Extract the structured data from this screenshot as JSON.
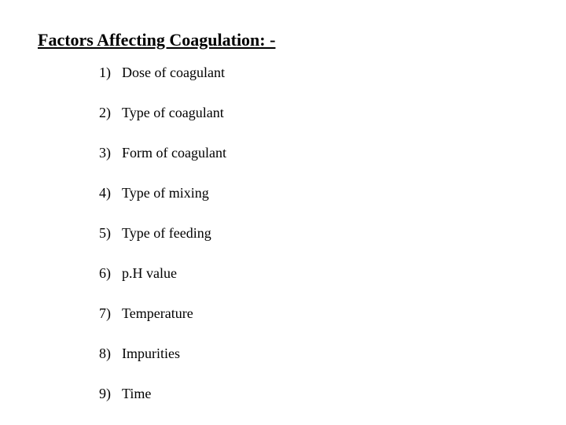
{
  "heading": "Factors Affecting Coagulation: -",
  "items": [
    {
      "num": "1)",
      "text": "Dose of coagulant"
    },
    {
      "num": "2)",
      "text": "Type of coagulant"
    },
    {
      "num": "3)",
      "text": "Form of coagulant"
    },
    {
      "num": "4)",
      "text": "Type of mixing"
    },
    {
      "num": "5)",
      "text": "Type of feeding"
    },
    {
      "num": "6)",
      "text": "p.H value"
    },
    {
      "num": "7)",
      "text": "Temperature"
    },
    {
      "num": "8)",
      "text": "Impurities"
    },
    {
      "num": "9)",
      "text": "Time"
    }
  ],
  "colors": {
    "background": "#ffffff",
    "text": "#000000"
  },
  "typography": {
    "heading_fontsize": 22,
    "heading_weight": "bold",
    "heading_underline": true,
    "item_fontsize": 18,
    "font_family": "Times New Roman"
  }
}
